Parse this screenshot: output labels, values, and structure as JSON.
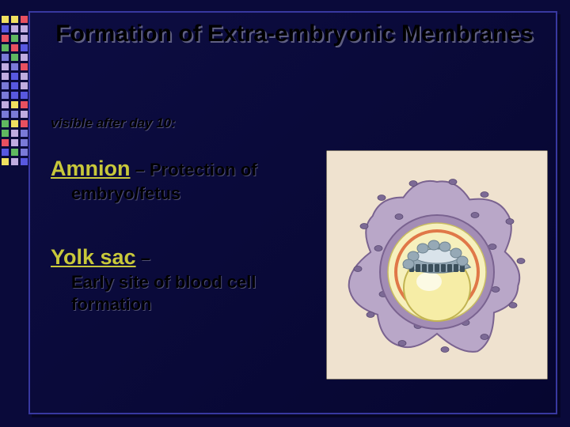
{
  "title": "Formation of Extra-embryonic Membranes",
  "subtitle": "visible after day 10:",
  "items": [
    {
      "keyword": "Amnion",
      "dash_rest": " – Protection of",
      "desc": "embryo/fetus"
    },
    {
      "keyword": "Yolk sac",
      "dash_rest": " –",
      "desc": "Early site of blood cell formation"
    }
  ],
  "square_colors": [
    "#f0e060",
    "#f0e060",
    "#e85060",
    "#5858e0",
    "#c0ace0",
    "#c0ace0",
    "#e85060",
    "#60b860",
    "#c0ace0",
    "#60b860",
    "#e85060",
    "#5858e0",
    "#7a7ad8",
    "#60b860",
    "#c0ace0",
    "#c0ace0",
    "#7a7ad8",
    "#e85060",
    "#c0ace0",
    "#5858e0",
    "#c0ace0",
    "#7a7ad8",
    "#5858e0",
    "#c0ace0",
    "#7a7ad8",
    "#5858e0",
    "#5858e0",
    "#c0ace0",
    "#f0e060",
    "#e85060",
    "#7a7ad8",
    "#7a7ad8",
    "#c0ace0",
    "#60b860",
    "#f0e060",
    "#e85060",
    "#60b860",
    "#c0ace0",
    "#7a7ad8",
    "#e85060",
    "#c0ace0",
    "#7a7ad8",
    "#5858e0",
    "#60b860",
    "#7a7ad8",
    "#f0e060",
    "#c0ace0",
    "#5858e0"
  ],
  "diagram": {
    "background": "#efe2cf",
    "outer_border": "#000000",
    "outer_amoeboid_fill": "#b9a7c8",
    "outer_amoeboid_stroke": "#7a6390",
    "outer_amoeboid_stroke_width": 2,
    "nuclei_fill": "#7c6a95",
    "nuclei_stroke": "#5a4a72",
    "ring_outer_fill": "#a38db5",
    "ring_outer_stroke": "#7a6390",
    "ring_inner_fill": "#f6f0bd",
    "ring_inner_stroke": "#c8bc62",
    "ring_border_inner": "#e07848",
    "embryo_top_fill": "#96a9b6",
    "embryo_top_stroke": "#6e8390",
    "embryo_dark_cells": "#3a4e5a",
    "amniotic_cavity_fill": "#d9e3ea",
    "yolk_sac_fill": "#f6eda6",
    "yolk_sac_stroke": "#c2b452",
    "yolk_sac_inner": "#ffffff"
  }
}
